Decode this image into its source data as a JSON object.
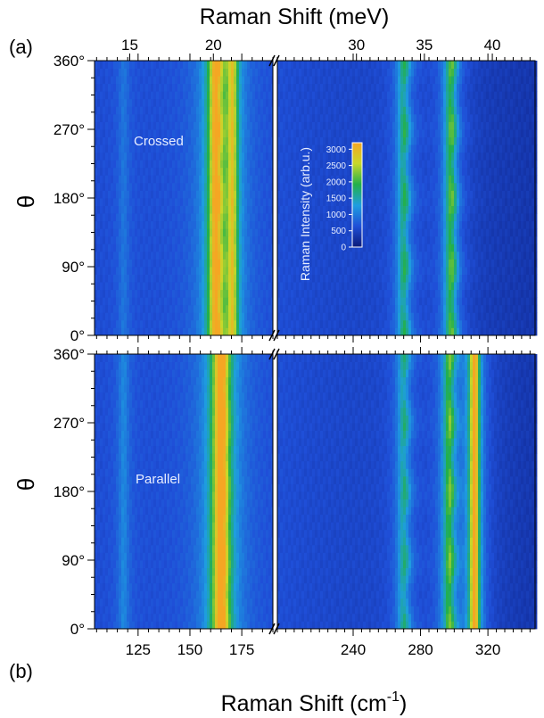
{
  "chart_data": [
    {
      "type": "heatmap",
      "panel_label": "(a)",
      "annotation": "Crossed",
      "ylabel": "θ",
      "y_ticks": [
        "0°",
        "90°",
        "180°",
        "270°",
        "360°"
      ],
      "ylim": [
        0,
        360
      ],
      "x_ticks_top_meV": [
        "15",
        "20",
        "30",
        "35",
        "40"
      ],
      "colorbar": {
        "label": "Raman Intensity (arb.u.)",
        "ticks": [
          "0",
          "500",
          "1000",
          "1500",
          "2000",
          "2500",
          "3000"
        ],
        "range": [
          0,
          3200
        ]
      },
      "peaks": [
        {
          "center_cm": 118,
          "amplitude": 350,
          "width": 2.5,
          "modulation": 0.0
        },
        {
          "center_cm": 162.5,
          "amplitude": 2600,
          "width": 3.5,
          "modulation": 0.08
        },
        {
          "center_cm": 170.5,
          "amplitude": 1900,
          "width": 2.5,
          "modulation": 0.0
        },
        {
          "center_cm": 270,
          "amplitude": 1250,
          "width": 3.5,
          "modulation": 0.25
        },
        {
          "center_cm": 298,
          "amplitude": 1600,
          "width": 3.5,
          "modulation": 0.2
        }
      ]
    },
    {
      "type": "heatmap",
      "panel_label": "(b)",
      "annotation": "Parallel",
      "ylabel": "θ",
      "y_ticks": [
        "0°",
        "90°",
        "180°",
        "270°",
        "360°"
      ],
      "ylim": [
        0,
        360
      ],
      "x_ticks_bottom_cm": [
        "125",
        "150",
        "175",
        "240",
        "280",
        "320"
      ],
      "peaks": [
        {
          "center_cm": 118,
          "amplitude": 500,
          "width": 2.5,
          "modulation": 0.0
        },
        {
          "center_cm": 165,
          "amplitude": 3000,
          "width": 4.0,
          "modulation": 0.05
        },
        {
          "center_cm": 270,
          "amplitude": 1100,
          "width": 3.5,
          "modulation": 0.25
        },
        {
          "center_cm": 297,
          "amplitude": 1600,
          "width": 3.5,
          "modulation": 0.2
        },
        {
          "center_cm": 312,
          "amplitude": 3100,
          "width": 2.5,
          "modulation": 0.0
        }
      ]
    }
  ],
  "axes": {
    "top_label": "Raman Shift (meV)",
    "bottom_label": "Raman Shift (cm",
    "bottom_label_sup": "-1",
    "bottom_label_end": ")",
    "x_range_cm_left": [
      104,
      190
    ],
    "x_range_cm_right": [
      195,
      348
    ]
  }
}
